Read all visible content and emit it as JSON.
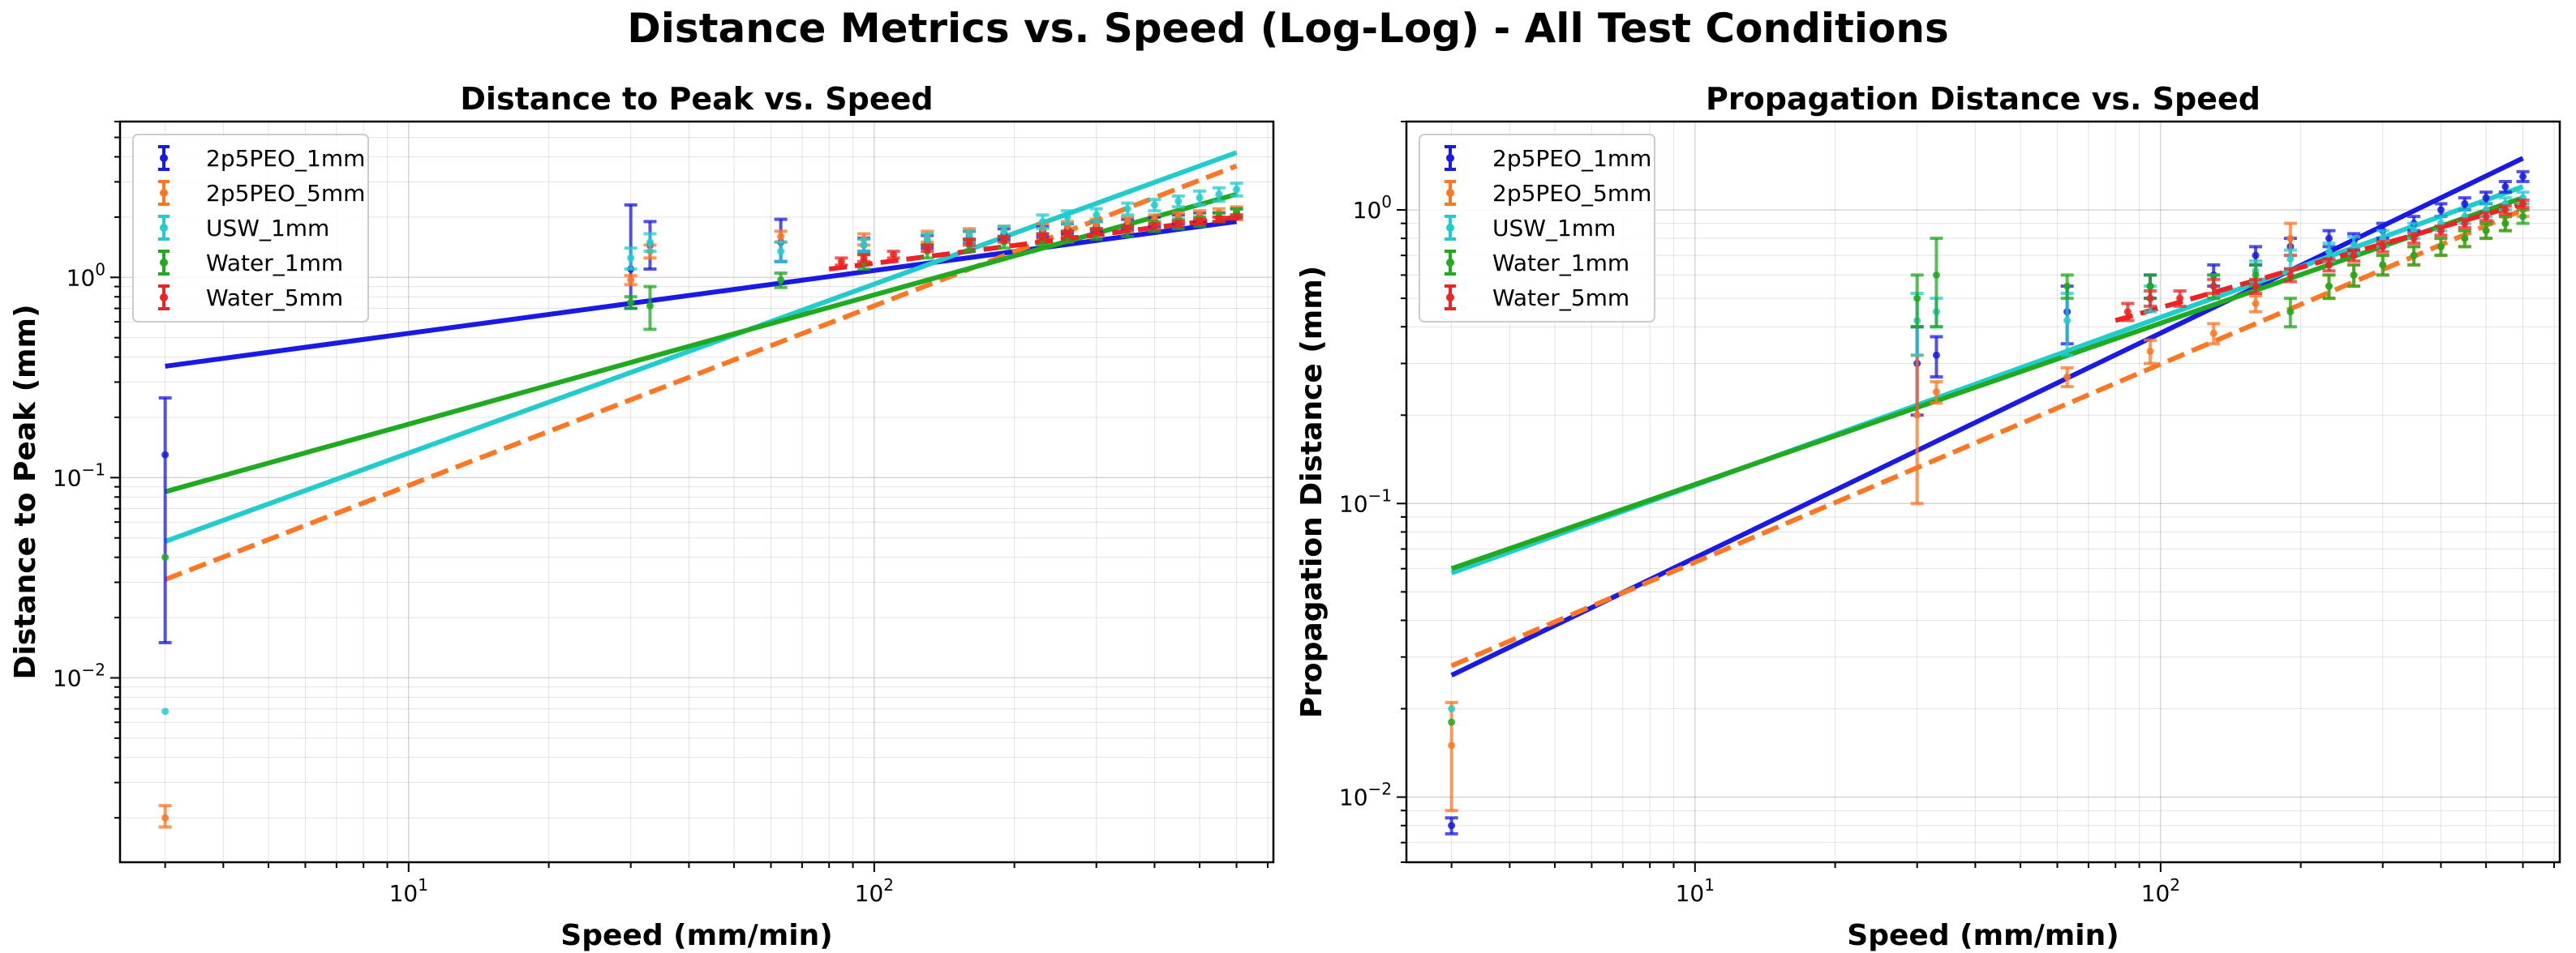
{
  "figure": {
    "suptitle": "Distance Metrics vs. Speed (Log-Log) - All Test Conditions"
  },
  "colors": {
    "2p5PEO_1mm": "#1a1ae6",
    "2p5PEO_5mm": "#ff7722",
    "USW_1mm": "#22cccc",
    "Water_1mm": "#1faa1f",
    "Water_5mm": "#ee2222"
  },
  "chart_data": [
    {
      "type": "scatter",
      "title": "Distance to Peak vs. Speed",
      "xlabel": "Speed (mm/min)",
      "ylabel": "Distance to Peak (mm)",
      "xscale": "log",
      "yscale": "log",
      "xlim": [
        2.4,
        720
      ],
      "ylim": [
        0.0012,
        6.0
      ],
      "xticks": [
        {
          "value": 10,
          "label": "10^1"
        },
        {
          "value": 100,
          "label": "10^2"
        }
      ],
      "yticks": [
        {
          "value": 0.01,
          "label": "10^-2"
        },
        {
          "value": 0.1,
          "label": "10^-1"
        },
        {
          "value": 1,
          "label": "10^0"
        }
      ],
      "grid": true,
      "legend": {
        "position": "top-left",
        "entries": [
          "2p5PEO_1mm",
          "2p5PEO_5mm",
          "USW_1mm",
          "Water_1mm",
          "Water_5mm"
        ]
      },
      "series": [
        {
          "name": "2p5PEO_1mm",
          "x": [
            3,
            30,
            33,
            63,
            95,
            130,
            160,
            190,
            230,
            260,
            300,
            350,
            400,
            450,
            500,
            550,
            600
          ],
          "y": [
            0.13,
            1.1,
            1.45,
            1.5,
            1.45,
            1.5,
            1.6,
            1.65,
            1.7,
            1.75,
            1.8,
            1.85,
            1.9,
            1.95,
            2.0,
            2.0,
            2.1
          ],
          "err_low": [
            0.115,
            0.4,
            0.35,
            0.3,
            0.1,
            0.1,
            0.1,
            0.1,
            0.1,
            0.1,
            0.1,
            0.1,
            0.1,
            0.1,
            0.1,
            0.1,
            0.1
          ],
          "err_high": [
            0.12,
            1.2,
            0.45,
            0.45,
            0.12,
            0.12,
            0.1,
            0.1,
            0.1,
            0.1,
            0.1,
            0.1,
            0.1,
            0.1,
            0.1,
            0.1,
            0.1
          ]
        },
        {
          "name": "2p5PEO_5mm",
          "x": [
            3,
            30,
            33,
            63,
            95,
            130,
            160,
            190,
            230,
            260,
            300,
            350,
            400,
            450,
            500,
            550,
            600
          ],
          "y": [
            0.002,
            0.97,
            1.35,
            1.6,
            1.55,
            1.6,
            1.65,
            1.7,
            1.75,
            1.8,
            1.85,
            1.9,
            1.95,
            2.0,
            2.05,
            2.1,
            2.15
          ],
          "err_low": [
            0.0002,
            0.05,
            0.1,
            0.1,
            0.1,
            0.1,
            0.1,
            0.1,
            0.1,
            0.1,
            0.1,
            0.1,
            0.1,
            0.1,
            0.1,
            0.1,
            0.1
          ],
          "err_high": [
            0.0003,
            0.05,
            0.1,
            0.1,
            0.1,
            0.1,
            0.1,
            0.1,
            0.1,
            0.1,
            0.1,
            0.1,
            0.1,
            0.1,
            0.1,
            0.1,
            0.1
          ]
        },
        {
          "name": "USW_1mm",
          "x": [
            3,
            30,
            33,
            63,
            95,
            130,
            160,
            190,
            230,
            260,
            300,
            350,
            400,
            450,
            500,
            550,
            600
          ],
          "y": [
            0.0068,
            1.25,
            1.5,
            1.35,
            1.45,
            1.55,
            1.6,
            1.7,
            1.9,
            2.0,
            2.05,
            2.2,
            2.3,
            2.4,
            2.5,
            2.6,
            2.75
          ],
          "err_low": [
            0.0,
            0.15,
            0.15,
            0.15,
            0.1,
            0.1,
            0.1,
            0.1,
            0.15,
            0.15,
            0.15,
            0.15,
            0.15,
            0.15,
            0.2,
            0.2,
            0.2
          ],
          "err_high": [
            0.0,
            0.15,
            0.15,
            0.15,
            0.1,
            0.1,
            0.1,
            0.1,
            0.15,
            0.15,
            0.15,
            0.15,
            0.15,
            0.15,
            0.2,
            0.2,
            0.2
          ]
        },
        {
          "name": "Water_1mm",
          "x": [
            3,
            30,
            33,
            63,
            95,
            130,
            160,
            190,
            230,
            260,
            300,
            350,
            400,
            450,
            500,
            550,
            600
          ],
          "y": [
            0.04,
            0.75,
            0.72,
            0.97,
            1.2,
            1.35,
            1.45,
            1.5,
            1.55,
            1.6,
            1.65,
            1.7,
            1.8,
            1.85,
            1.9,
            2.0,
            2.1
          ],
          "err_low": [
            0.0,
            0.05,
            0.17,
            0.08,
            0.1,
            0.1,
            0.1,
            0.1,
            0.1,
            0.1,
            0.1,
            0.1,
            0.1,
            0.1,
            0.1,
            0.1,
            0.1
          ],
          "err_high": [
            0.0,
            0.05,
            0.18,
            0.08,
            0.1,
            0.1,
            0.1,
            0.1,
            0.1,
            0.1,
            0.1,
            0.1,
            0.1,
            0.1,
            0.1,
            0.1,
            0.1
          ]
        },
        {
          "name": "Water_5mm",
          "x": [
            85,
            95,
            110,
            130,
            160,
            190,
            230,
            260,
            300,
            350,
            400,
            450,
            500,
            550,
            600
          ],
          "y": [
            1.2,
            1.25,
            1.3,
            1.4,
            1.5,
            1.55,
            1.6,
            1.65,
            1.7,
            1.75,
            1.8,
            1.85,
            1.9,
            1.95,
            2.0
          ],
          "err_low": [
            0.05,
            0.05,
            0.05,
            0.05,
            0.05,
            0.05,
            0.05,
            0.05,
            0.05,
            0.05,
            0.05,
            0.05,
            0.05,
            0.05,
            0.05
          ],
          "err_high": [
            0.05,
            0.05,
            0.05,
            0.05,
            0.05,
            0.05,
            0.05,
            0.05,
            0.05,
            0.05,
            0.05,
            0.05,
            0.05,
            0.05,
            0.05
          ]
        }
      ],
      "fits": [
        {
          "series": "2p5PEO_1mm",
          "x": [
            3,
            600
          ],
          "y": [
            0.36,
            1.9
          ],
          "dashed": false
        },
        {
          "series": "2p5PEO_5mm",
          "x": [
            3,
            600
          ],
          "y": [
            0.031,
            3.6
          ],
          "dashed": true
        },
        {
          "series": "USW_1mm",
          "x": [
            3,
            600
          ],
          "y": [
            0.048,
            4.2
          ],
          "dashed": false
        },
        {
          "series": "Water_1mm",
          "x": [
            3,
            600
          ],
          "y": [
            0.085,
            2.6
          ],
          "dashed": false
        },
        {
          "series": "Water_5mm",
          "x": [
            80,
            600
          ],
          "y": [
            1.1,
            2.0
          ],
          "dashed": true
        }
      ]
    },
    {
      "type": "scatter",
      "title": "Propagation Distance vs. Speed",
      "xlabel": "Speed (mm/min)",
      "ylabel": "Propagation Distance (mm)",
      "xscale": "log",
      "yscale": "log",
      "xlim": [
        2.4,
        720
      ],
      "ylim": [
        0.006,
        2.0
      ],
      "xticks": [
        {
          "value": 10,
          "label": "10^1"
        },
        {
          "value": 100,
          "label": "10^2"
        }
      ],
      "yticks": [
        {
          "value": 0.01,
          "label": "10^-2"
        },
        {
          "value": 0.1,
          "label": "10^-1"
        },
        {
          "value": 1,
          "label": "10^0"
        }
      ],
      "grid": true,
      "legend": {
        "position": "top-left",
        "entries": [
          "2p5PEO_1mm",
          "2p5PEO_5mm",
          "USW_1mm",
          "Water_1mm",
          "Water_5mm"
        ]
      },
      "series": [
        {
          "name": "2p5PEO_1mm",
          "x": [
            3,
            30,
            33,
            63,
            95,
            130,
            160,
            190,
            230,
            260,
            300,
            350,
            400,
            450,
            500,
            550,
            600
          ],
          "y": [
            0.008,
            0.3,
            0.32,
            0.45,
            0.55,
            0.6,
            0.7,
            0.75,
            0.8,
            0.78,
            0.85,
            0.9,
            1.0,
            1.05,
            1.1,
            1.2,
            1.3
          ],
          "err_low": [
            0.0005,
            0.1,
            0.05,
            0.1,
            0.05,
            0.05,
            0.05,
            0.05,
            0.05,
            0.05,
            0.05,
            0.05,
            0.05,
            0.05,
            0.05,
            0.05,
            0.05
          ],
          "err_high": [
            0.0005,
            0.1,
            0.05,
            0.1,
            0.05,
            0.05,
            0.05,
            0.05,
            0.05,
            0.05,
            0.05,
            0.05,
            0.05,
            0.05,
            0.05,
            0.05,
            0.05
          ]
        },
        {
          "name": "2p5PEO_5mm",
          "x": [
            3,
            30,
            33,
            63,
            95,
            130,
            160,
            190,
            230,
            260,
            300,
            350,
            400,
            450,
            500,
            550,
            600
          ],
          "y": [
            0.015,
            0.2,
            0.24,
            0.27,
            0.33,
            0.38,
            0.48,
            0.8,
            0.55,
            0.6,
            0.65,
            0.7,
            0.75,
            0.8,
            0.85,
            0.9,
            1.0
          ],
          "err_low": [
            0.006,
            0.1,
            0.02,
            0.02,
            0.03,
            0.03,
            0.03,
            0.1,
            0.05,
            0.05,
            0.05,
            0.05,
            0.05,
            0.05,
            0.05,
            0.05,
            0.05
          ],
          "err_high": [
            0.006,
            0.12,
            0.02,
            0.02,
            0.03,
            0.03,
            0.03,
            0.1,
            0.05,
            0.05,
            0.05,
            0.05,
            0.05,
            0.05,
            0.05,
            0.05,
            0.05
          ]
        },
        {
          "name": "USW_1mm",
          "x": [
            3,
            30,
            33,
            63,
            95,
            130,
            160,
            190,
            230,
            260,
            300,
            350,
            400,
            450,
            500,
            550,
            600
          ],
          "y": [
            0.02,
            0.42,
            0.45,
            0.42,
            0.5,
            0.55,
            0.62,
            0.68,
            0.72,
            0.76,
            0.8,
            0.85,
            0.9,
            0.95,
            1.0,
            1.05,
            1.1
          ],
          "err_low": [
            0.0,
            0.1,
            0.05,
            0.1,
            0.05,
            0.05,
            0.05,
            0.05,
            0.05,
            0.05,
            0.05,
            0.05,
            0.05,
            0.05,
            0.05,
            0.05,
            0.05
          ],
          "err_high": [
            0.0,
            0.1,
            0.05,
            0.1,
            0.05,
            0.05,
            0.05,
            0.05,
            0.05,
            0.05,
            0.05,
            0.05,
            0.05,
            0.05,
            0.05,
            0.05,
            0.05
          ]
        },
        {
          "name": "Water_1mm",
          "x": [
            3,
            30,
            33,
            63,
            95,
            130,
            160,
            190,
            230,
            260,
            300,
            350,
            400,
            450,
            500,
            550,
            600
          ],
          "y": [
            0.018,
            0.5,
            0.6,
            0.55,
            0.55,
            0.55,
            0.6,
            0.45,
            0.55,
            0.6,
            0.65,
            0.7,
            0.75,
            0.8,
            0.85,
            0.9,
            0.95
          ],
          "err_low": [
            0.0,
            0.1,
            0.2,
            0.05,
            0.05,
            0.05,
            0.05,
            0.05,
            0.05,
            0.05,
            0.05,
            0.05,
            0.05,
            0.05,
            0.05,
            0.05,
            0.05
          ],
          "err_high": [
            0.0,
            0.1,
            0.2,
            0.05,
            0.05,
            0.05,
            0.05,
            0.05,
            0.05,
            0.05,
            0.05,
            0.05,
            0.05,
            0.05,
            0.05,
            0.05,
            0.05
          ]
        },
        {
          "name": "Water_5mm",
          "x": [
            85,
            95,
            110,
            130,
            160,
            190,
            230,
            260,
            300,
            350,
            400,
            450,
            500,
            550,
            600
          ],
          "y": [
            0.45,
            0.5,
            0.5,
            0.55,
            0.55,
            0.6,
            0.65,
            0.7,
            0.75,
            0.8,
            0.85,
            0.9,
            0.95,
            1.0,
            1.05
          ],
          "err_low": [
            0.03,
            0.03,
            0.03,
            0.03,
            0.03,
            0.03,
            0.03,
            0.03,
            0.03,
            0.03,
            0.03,
            0.03,
            0.03,
            0.03,
            0.03
          ],
          "err_high": [
            0.03,
            0.03,
            0.03,
            0.03,
            0.03,
            0.03,
            0.03,
            0.03,
            0.03,
            0.03,
            0.03,
            0.03,
            0.03,
            0.03,
            0.03
          ]
        }
      ],
      "fits": [
        {
          "series": "2p5PEO_1mm",
          "x": [
            3,
            600
          ],
          "y": [
            0.026,
            1.5
          ],
          "dashed": false
        },
        {
          "series": "2p5PEO_5mm",
          "x": [
            3,
            600
          ],
          "y": [
            0.028,
            1.0
          ],
          "dashed": true
        },
        {
          "series": "USW_1mm",
          "x": [
            3,
            600
          ],
          "y": [
            0.058,
            1.2
          ],
          "dashed": false
        },
        {
          "series": "Water_1mm",
          "x": [
            3,
            600
          ],
          "y": [
            0.06,
            1.1
          ],
          "dashed": false
        },
        {
          "series": "Water_5mm",
          "x": [
            80,
            600
          ],
          "y": [
            0.42,
            1.05
          ],
          "dashed": true
        }
      ]
    }
  ]
}
